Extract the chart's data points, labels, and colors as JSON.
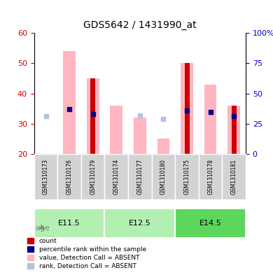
{
  "title": "GDS5642 / 1431990_at",
  "samples": [
    "GSM1310173",
    "GSM1310176",
    "GSM1310179",
    "GSM1310174",
    "GSM1310177",
    "GSM1310180",
    "GSM1310175",
    "GSM1310178",
    "GSM1310181"
  ],
  "age_groups": [
    {
      "label": "E11.5",
      "samples": [
        "GSM1310173",
        "GSM1310176",
        "GSM1310179"
      ],
      "color": "#90EE90"
    },
    {
      "label": "E12.5",
      "samples": [
        "GSM1310174",
        "GSM1310177",
        "GSM1310180"
      ],
      "color": "#90EE90"
    },
    {
      "label": "E14.5",
      "samples": [
        "GSM1310175",
        "GSM1310178",
        "GSM1310181"
      ],
      "color": "#4CAF50"
    }
  ],
  "count_values": [
    20,
    20,
    45,
    20,
    20,
    20,
    50,
    20,
    36
  ],
  "percentile_values": [
    null,
    37,
    33,
    null,
    null,
    null,
    36,
    35,
    31
  ],
  "absent_value_values": [
    20,
    54,
    45,
    36,
    32,
    25,
    50,
    43,
    36
  ],
  "absent_rank_values": [
    31,
    null,
    null,
    null,
    32,
    29,
    null,
    34,
    null
  ],
  "ylim_left": [
    20,
    60
  ],
  "ylim_right": [
    0,
    100
  ],
  "yticks_left": [
    20,
    30,
    40,
    50,
    60
  ],
  "yticks_right": [
    0,
    25,
    50,
    75,
    100
  ],
  "ylabel_left_color": "#cc0000",
  "ylabel_right_color": "#0000cc",
  "count_color": "#cc0000",
  "percentile_color": "#00008B",
  "absent_value_color": "#FFB6C1",
  "absent_rank_color": "#B0C4DE",
  "bar_width": 0.35,
  "age_label": "age",
  "age_group_colors": [
    "#b2f0b2",
    "#b2f0b2",
    "#4dbb4d"
  ],
  "legend_items": [
    {
      "label": "count",
      "color": "#cc0000",
      "marker": "s"
    },
    {
      "label": "percentile rank within the sample",
      "color": "#00008B",
      "marker": "s"
    },
    {
      "label": "value, Detection Call = ABSENT",
      "color": "#FFB6C1",
      "marker": "s"
    },
    {
      "label": "rank, Detection Call = ABSENT",
      "color": "#B0C4DE",
      "marker": "s"
    }
  ]
}
